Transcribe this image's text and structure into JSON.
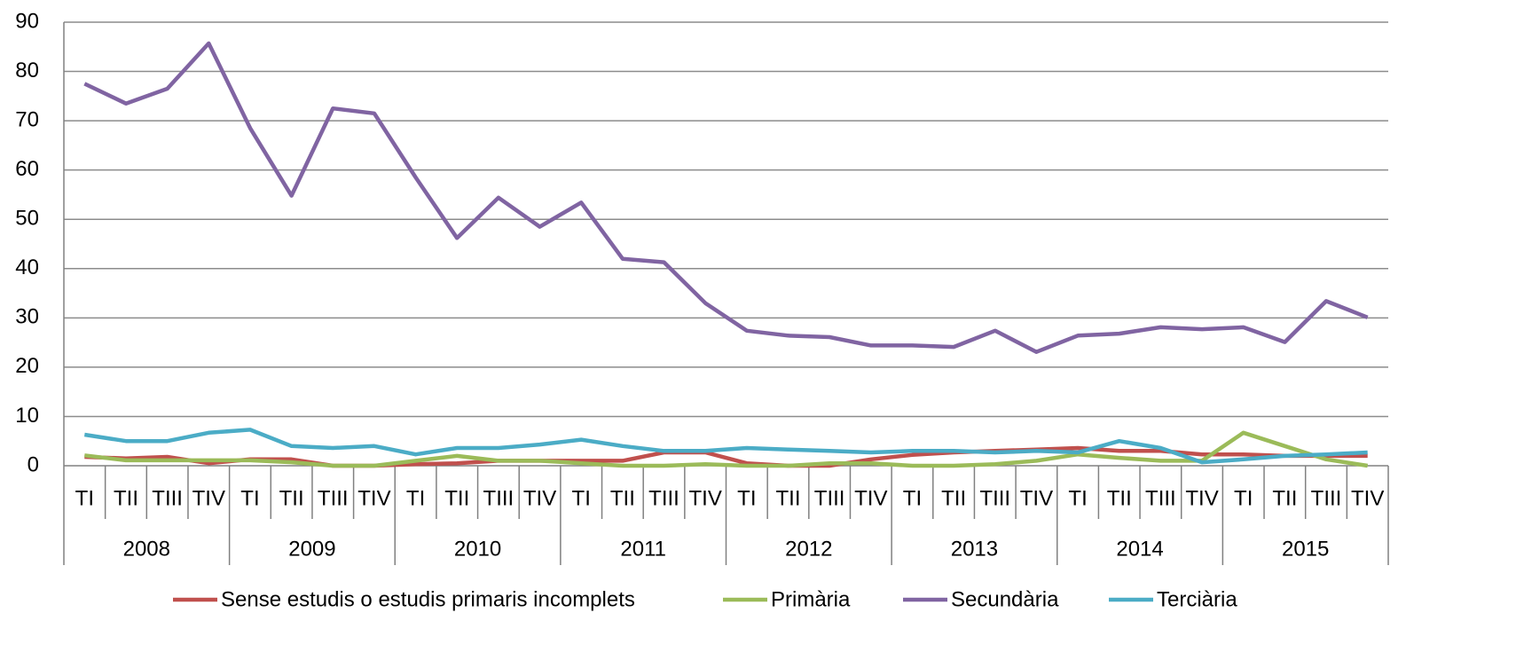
{
  "chart_data": {
    "type": "line",
    "categories": [
      "TI",
      "TII",
      "TIII",
      "TIV",
      "TI",
      "TII",
      "TIII",
      "TIV",
      "TI",
      "TII",
      "TIII",
      "TIV",
      "TI",
      "TII",
      "TIII",
      "TIV",
      "TI",
      "TII",
      "TIII",
      "TIV",
      "TI",
      "TII",
      "TIII",
      "TIV",
      "TI",
      "TII",
      "TIII",
      "TIV",
      "TI",
      "TII",
      "TIII",
      "TIV"
    ],
    "years": [
      "2008",
      "2009",
      "2010",
      "2011",
      "2012",
      "2013",
      "2014",
      "2015"
    ],
    "series": [
      {
        "name": "Sense estudis o estudis primaris incomplets",
        "color": "#c0504d",
        "values": [
          1.8,
          1.5,
          1.8,
          0.5,
          1.3,
          1.3,
          0,
          0,
          0.3,
          0.5,
          1,
          1,
          1,
          1,
          2.7,
          2.7,
          0.5,
          0,
          0,
          1.3,
          2.2,
          2.7,
          3,
          3.3,
          3.6,
          3,
          3,
          2.3,
          2.3,
          2,
          2,
          2
        ]
      },
      {
        "name": "Primària",
        "color": "#9bbb59",
        "values": [
          2.1,
          1.1,
          1.1,
          1.1,
          1.1,
          0.7,
          0,
          0,
          1,
          2,
          1,
          1,
          0.5,
          0,
          0,
          0.3,
          0,
          0,
          0.5,
          0.5,
          0,
          0,
          0.3,
          1,
          2.3,
          1.6,
          1,
          1,
          6.7,
          4,
          1.3,
          0
        ]
      },
      {
        "name": "Secundària",
        "color": "#8064a2",
        "values": [
          77.5,
          73.5,
          76.5,
          85.7,
          68.5,
          54.8,
          72.5,
          71.5,
          58.5,
          46.2,
          54.4,
          48.5,
          53.4,
          42,
          41.3,
          33,
          27.4,
          26.4,
          26.1,
          24.4,
          24.4,
          24.1,
          27.4,
          23.1,
          26.4,
          26.8,
          28.1,
          27.7,
          28.1,
          25.1,
          33.4,
          30.1
        ]
      },
      {
        "name": "Terciària",
        "color": "#4bacc6",
        "values": [
          6.3,
          5,
          5,
          6.7,
          7.3,
          4,
          3.6,
          4,
          2.3,
          3.6,
          3.6,
          4.3,
          5.3,
          4,
          3,
          3,
          3.6,
          3.3,
          3,
          2.7,
          3,
          3,
          2.7,
          3,
          2.7,
          5,
          3.6,
          0.7,
          1.3,
          2,
          2.3,
          2.7
        ]
      }
    ],
    "ylim": [
      0,
      90
    ],
    "yticks": [
      0,
      10,
      20,
      30,
      40,
      50,
      60,
      70,
      80,
      90
    ],
    "grid": true,
    "legend": "bottom"
  }
}
